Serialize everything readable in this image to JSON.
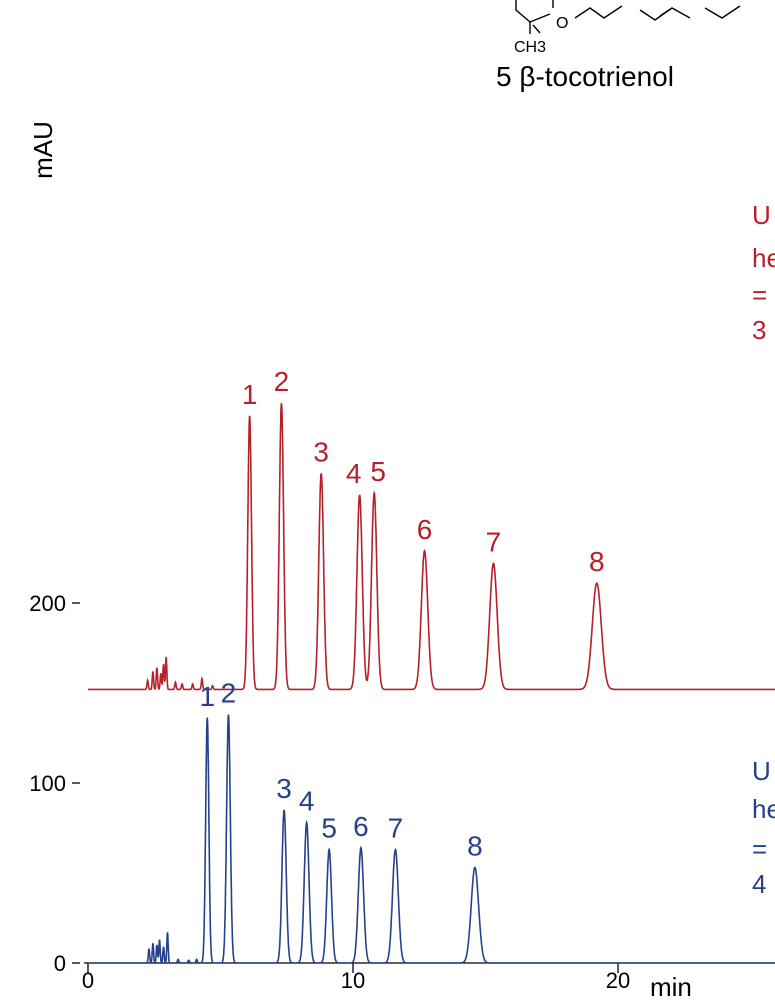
{
  "chart_data": {
    "type": "line",
    "ylabel": "mAU",
    "x_unit": "min",
    "x_ticks": [
      {
        "v": 0,
        "label": "0"
      },
      {
        "v": 10,
        "label": "10"
      },
      {
        "v": 20,
        "label": "20"
      }
    ],
    "y_ticks": [
      {
        "v": 0,
        "label": "0"
      },
      {
        "v": 100,
        "label": "100"
      },
      {
        "v": 200,
        "label": "200"
      }
    ],
    "xlim": [
      0,
      26
    ],
    "structure_caption": "5  β-tocotrienol",
    "structure_labels": {
      "methyl": "CH3",
      "ring_o": "O"
    },
    "series": [
      {
        "color": "#b5202a",
        "offset": 152,
        "condition_text": [
          "U",
          "he",
          "=",
          "3"
        ],
        "noise": [
          [
            2.25,
            5
          ],
          [
            2.45,
            10
          ],
          [
            2.6,
            12
          ],
          [
            2.75,
            9
          ],
          [
            2.85,
            14
          ],
          [
            2.95,
            18
          ],
          [
            3.3,
            4
          ],
          [
            3.55,
            3
          ],
          [
            3.95,
            3
          ],
          [
            4.3,
            6
          ],
          [
            4.7,
            2
          ]
        ],
        "peaks": [
          {
            "label": "1",
            "t": 6.1,
            "h": 152,
            "w": 0.07
          },
          {
            "label": "2",
            "t": 7.3,
            "h": 159,
            "w": 0.08
          },
          {
            "label": "3",
            "t": 8.8,
            "h": 120,
            "w": 0.09
          },
          {
            "label": "4",
            "t": 10.25,
            "h": 108,
            "w": 0.1
          },
          {
            "label": "5",
            "t": 10.8,
            "h": 109,
            "w": 0.1
          },
          {
            "label": "6",
            "t": 12.7,
            "h": 77,
            "w": 0.12
          },
          {
            "label": "7",
            "t": 15.3,
            "h": 70,
            "w": 0.14
          },
          {
            "label": "8",
            "t": 19.2,
            "h": 59,
            "w": 0.17
          }
        ]
      },
      {
        "color": "#27408b",
        "offset": 0,
        "condition_text": [
          "U",
          "he",
          "=",
          "4"
        ],
        "noise": [
          [
            2.3,
            8
          ],
          [
            2.45,
            11
          ],
          [
            2.6,
            10
          ],
          [
            2.7,
            13
          ],
          [
            2.85,
            9
          ],
          [
            3.0,
            17
          ],
          [
            3.4,
            2
          ],
          [
            3.8,
            1.5
          ],
          [
            4.1,
            2
          ],
          [
            4.55,
            2
          ]
        ],
        "peaks": [
          {
            "label": "1",
            "t": 4.5,
            "h": 136,
            "w": 0.06
          },
          {
            "label": "2",
            "t": 5.3,
            "h": 138,
            "w": 0.07
          },
          {
            "label": "3",
            "t": 7.4,
            "h": 85,
            "w": 0.08
          },
          {
            "label": "4",
            "t": 8.25,
            "h": 78,
            "w": 0.09
          },
          {
            "label": "5",
            "t": 9.1,
            "h": 63,
            "w": 0.09
          },
          {
            "label": "6",
            "t": 10.3,
            "h": 64,
            "w": 0.1
          },
          {
            "label": "7",
            "t": 11.6,
            "h": 63,
            "w": 0.11
          },
          {
            "label": "8",
            "t": 14.6,
            "h": 53,
            "w": 0.14
          }
        ]
      }
    ]
  }
}
